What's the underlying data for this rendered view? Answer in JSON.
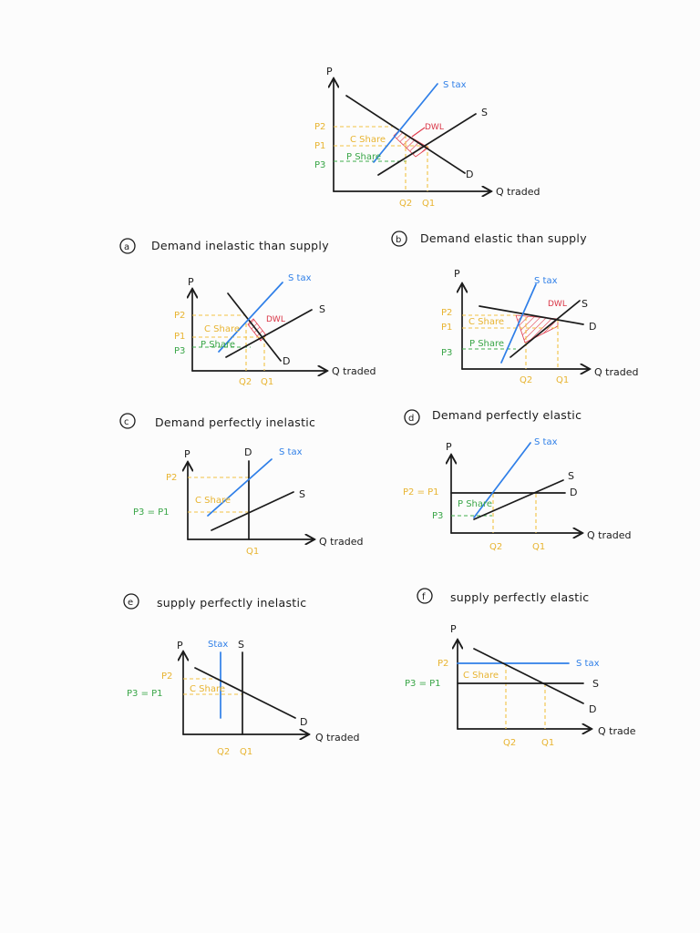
{
  "axis": {
    "p": "P",
    "q_traded": "Q traded",
    "q_trade": "Q trade"
  },
  "curve": {
    "s": "S",
    "d": "D",
    "s_tax": "S tax",
    "stax_compact": "Stax"
  },
  "labels": {
    "p1": "P1",
    "p2": "P2",
    "p3": "P3",
    "q1": "Q1",
    "q2": "Q2",
    "c_share": "C Share",
    "p_share": "P Share",
    "dwl": "DWL",
    "p3_eq_p1": "P3 = P1",
    "p2_eq_p1": "P2 = P1"
  },
  "panels": [
    {
      "id": "a",
      "letter": "a",
      "title": "Demand inelastic than supply"
    },
    {
      "id": "b",
      "letter": "b",
      "title": "Demand elastic than supply"
    },
    {
      "id": "c",
      "letter": "c",
      "title": "Demand perfectly inelastic"
    },
    {
      "id": "d",
      "letter": "d",
      "title": "Demand perfectly elastic"
    },
    {
      "id": "e",
      "letter": "e",
      "title": "supply perfectly inelastic"
    },
    {
      "id": "f",
      "letter": "f",
      "title": "supply perfectly elastic"
    }
  ],
  "colors": {
    "ink": "#1b1b1b",
    "tax_curve": "#2f7fe8",
    "consumer_share": "#f2c244",
    "producer_share": "#3fae4b",
    "dwl": "#e0394a"
  }
}
